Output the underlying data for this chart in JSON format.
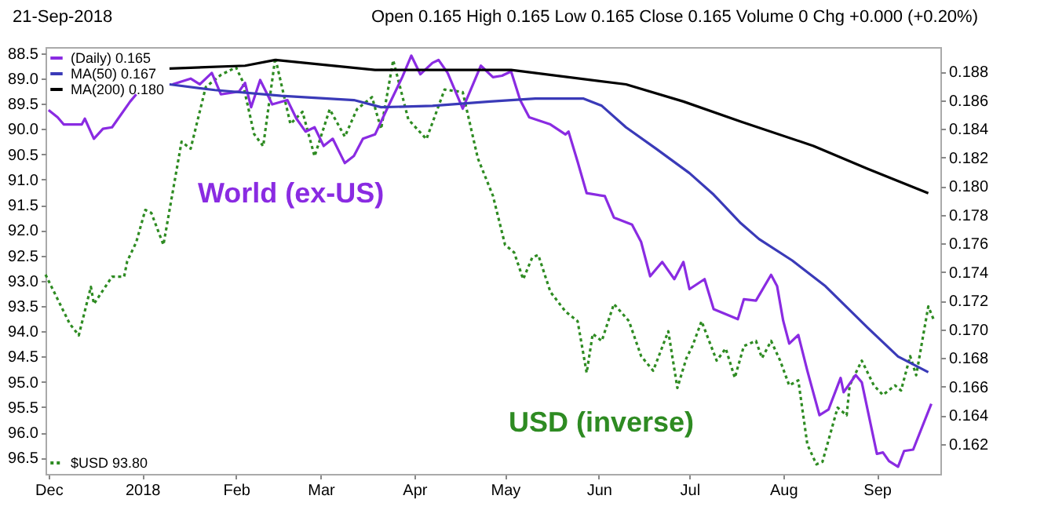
{
  "chart_data": {
    "type": "line",
    "subtitle": "21-Sep-2018",
    "annotations": [
      "Open 0.165 High 0.165 Low 0.165 Close 0.165 Volume 0 Chg +0.000 (+0.20%)",
      "World (ex-US)",
      "USD (inverse)"
    ],
    "xlim": [
      "2017-11-30",
      "2018-09-22"
    ],
    "xticks": [
      {
        "value": "2017-12-01",
        "label": "Dec"
      },
      {
        "value": "2018-01-01",
        "label": "2018"
      },
      {
        "value": "2018-02-01",
        "label": "Feb"
      },
      {
        "value": "2018-03-01",
        "label": "Mar"
      },
      {
        "value": "2018-04-01",
        "label": "Apr"
      },
      {
        "value": "2018-05-01",
        "label": "May"
      },
      {
        "value": "2018-06-01",
        "label": "Jun"
      },
      {
        "value": "2018-07-01",
        "label": "Jul"
      },
      {
        "value": "2018-08-01",
        "label": "Aug"
      },
      {
        "value": "2018-09-01",
        "label": "Sep"
      }
    ],
    "ylim": [
      96.82,
      88.38
    ],
    "yticks": [
      {
        "value": 88.5,
        "label": "88.5"
      },
      {
        "value": 89,
        "label": "89.0"
      },
      {
        "value": 89.5,
        "label": "89.5"
      },
      {
        "value": 90,
        "label": "90.0"
      },
      {
        "value": 90.5,
        "label": "90.5"
      },
      {
        "value": 91,
        "label": "91.0"
      },
      {
        "value": 91.5,
        "label": "91.5"
      },
      {
        "value": 92,
        "label": "92.0"
      },
      {
        "value": 92.5,
        "label": "92.5"
      },
      {
        "value": 93,
        "label": "93.0"
      },
      {
        "value": 93.5,
        "label": "93.5"
      },
      {
        "value": 94,
        "label": "94.0"
      },
      {
        "value": 94.5,
        "label": "94.5"
      },
      {
        "value": 95,
        "label": "95.0"
      },
      {
        "value": 95.5,
        "label": "95.5"
      },
      {
        "value": 96,
        "label": "96.0"
      },
      {
        "value": 96.5,
        "label": "96.5"
      }
    ],
    "y2lim": [
      0.1599,
      0.1897
    ],
    "y2ticks": [
      {
        "value": 0.162,
        "label": "0.162"
      },
      {
        "value": 0.164,
        "label": "0.164"
      },
      {
        "value": 0.166,
        "label": "0.166"
      },
      {
        "value": 0.168,
        "label": "0.168"
      },
      {
        "value": 0.17,
        "label": "0.170"
      },
      {
        "value": 0.172,
        "label": "0.172"
      },
      {
        "value": 0.174,
        "label": "0.174"
      },
      {
        "value": 0.176,
        "label": "0.176"
      },
      {
        "value": 0.178,
        "label": "0.178"
      },
      {
        "value": 0.18,
        "label": "0.180"
      },
      {
        "value": 0.182,
        "label": "0.182"
      },
      {
        "value": 0.184,
        "label": "0.184"
      },
      {
        "value": 0.186,
        "label": "0.186"
      },
      {
        "value": 0.188,
        "label": "0.188"
      }
    ],
    "legend": "top left",
    "marker": "none",
    "series": [
      {
        "name": "(Daily) 0.165",
        "color": "#8a2be2",
        "axis": "y2",
        "line_style": "solid",
        "x": [
          "2017-12-01",
          "2017-12-04",
          "2017-12-06",
          "2017-12-12",
          "2017-12-13",
          "2017-12-16",
          "2017-12-19",
          "2017-12-22",
          "2017-12-28",
          "2017-12-30",
          "2018-01-05",
          "2018-01-11",
          "2018-01-17",
          "2018-01-20",
          "2018-01-24",
          "2018-01-27",
          "2018-02-02",
          "2018-02-04",
          "2018-02-06",
          "2018-02-09",
          "2018-02-13",
          "2018-02-18",
          "2018-02-21",
          "2018-02-24",
          "2018-02-27",
          "2018-03-02",
          "2018-03-05",
          "2018-03-09",
          "2018-03-12",
          "2018-03-15",
          "2018-03-19",
          "2018-03-23",
          "2018-03-28",
          "2018-03-31",
          "2018-04-03",
          "2018-04-07",
          "2018-04-09",
          "2018-04-12",
          "2018-04-17",
          "2018-04-20",
          "2018-04-23",
          "2018-04-27",
          "2018-04-30",
          "2018-05-03",
          "2018-05-06",
          "2018-05-09",
          "2018-05-16",
          "2018-05-21",
          "2018-05-22",
          "2018-05-25",
          "2018-05-28",
          "2018-06-03",
          "2018-06-06",
          "2018-06-12",
          "2018-06-15",
          "2018-06-18",
          "2018-06-22",
          "2018-06-26",
          "2018-06-29",
          "2018-07-01",
          "2018-07-06",
          "2018-07-09",
          "2018-07-17",
          "2018-07-19",
          "2018-07-23",
          "2018-07-28",
          "2018-07-30",
          "2018-08-01",
          "2018-08-03",
          "2018-08-06",
          "2018-08-09",
          "2018-08-13",
          "2018-08-16",
          "2018-08-20",
          "2018-08-21",
          "2018-08-25",
          "2018-08-27",
          "2018-09-01",
          "2018-09-03",
          "2018-09-05",
          "2018-09-08",
          "2018-09-10",
          "2018-09-13",
          "2018-09-19"
        ],
        "values": [
          0.1853,
          0.1848,
          0.1843,
          0.1843,
          0.1847,
          0.1833,
          0.184,
          0.1841,
          0.1859,
          0.1864,
          null,
          0.1871,
          0.1875,
          0.1871,
          0.1879,
          0.1864,
          0.1866,
          0.1872,
          0.1855,
          0.1874,
          0.1857,
          0.186,
          0.1847,
          0.1838,
          0.1841,
          0.1828,
          0.1833,
          0.1816,
          0.1821,
          0.1833,
          0.1836,
          0.1854,
          0.1876,
          0.1891,
          0.1878,
          0.1886,
          0.1888,
          0.1879,
          0.1854,
          0.1869,
          0.1884,
          0.1876,
          0.1877,
          0.188,
          0.186,
          0.1848,
          0.1843,
          0.1836,
          0.1838,
          0.1817,
          0.1795,
          0.1793,
          0.1778,
          0.1773,
          0.1761,
          0.1737,
          0.1747,
          0.1735,
          0.1747,
          0.1728,
          0.1735,
          0.1714,
          0.1707,
          0.1721,
          0.172,
          0.1738,
          0.173,
          0.1706,
          0.169,
          0.1696,
          0.1671,
          0.164,
          0.1644,
          0.1666,
          0.1656,
          0.1668,
          0.1663,
          0.1613,
          0.1614,
          0.1608,
          0.1604,
          0.1615,
          0.1616,
          0.1648
        ]
      },
      {
        "name": "MA(50) 0.167",
        "color": "#3a3ab8",
        "axis": "y2",
        "line_style": "solid",
        "x": [
          "2018-01-10",
          "2018-01-25",
          "2018-02-16",
          "2018-03-12",
          "2018-03-21",
          "2018-04-07",
          "2018-04-26",
          "2018-05-11",
          "2018-05-27",
          "2018-06-02",
          "2018-06-10",
          "2018-06-20",
          "2018-07-01",
          "2018-07-09",
          "2018-07-18",
          "2018-07-24",
          "2018-08-04",
          "2018-08-15",
          "2018-08-29",
          "2018-09-08",
          "2018-09-18"
        ],
        "values": [
          0.1871,
          0.1867,
          0.1863,
          0.186,
          0.1855,
          0.1856,
          0.1859,
          0.1861,
          0.1861,
          0.1856,
          0.1841,
          0.1826,
          0.1809,
          0.1794,
          0.1774,
          0.1763,
          0.1748,
          0.173,
          0.1701,
          0.1681,
          0.167
        ]
      },
      {
        "name": "MA(200) 0.180",
        "color": "#000000",
        "axis": "y2",
        "line_style": "solid",
        "x": [
          "2018-01-10",
          "2018-02-04",
          "2018-02-14",
          "2018-03-19",
          "2018-05-03",
          "2018-06-10",
          "2018-06-29",
          "2018-07-18",
          "2018-08-11",
          "2018-08-29",
          "2018-09-18"
        ],
        "values": [
          0.1882,
          0.1884,
          0.1888,
          0.1881,
          0.1881,
          0.1871,
          0.1859,
          0.1845,
          0.1828,
          0.1812,
          0.1795
        ]
      },
      {
        "name": "$USD 93.80",
        "color": "#2e8b22",
        "axis": "y",
        "line_style": "dotted",
        "x": [
          "2017-11-30",
          "2017-12-08",
          "2017-12-11",
          "2017-12-15",
          "2017-12-16",
          "2017-12-22",
          "2017-12-26",
          "2017-12-27",
          "2017-12-30",
          "2018-01-02",
          "2018-01-04",
          "2018-01-08",
          "2018-01-14",
          "2018-01-17",
          "2018-01-22",
          "2018-01-27",
          "2018-02-01",
          "2018-02-03",
          "2018-02-07",
          "2018-02-10",
          "2018-02-14",
          "2018-02-19",
          "2018-02-23",
          "2018-02-27",
          "2018-03-04",
          "2018-03-09",
          "2018-03-13",
          "2018-03-18",
          "2018-03-21",
          "2018-03-25",
          "2018-03-30",
          "2018-04-05",
          "2018-04-11",
          "2018-04-17",
          "2018-04-22",
          "2018-04-27",
          "2018-05-01",
          "2018-05-04",
          "2018-05-07",
          "2018-05-10",
          "2018-05-12",
          "2018-05-16",
          "2018-05-21",
          "2018-05-25",
          "2018-05-28",
          "2018-05-30",
          "2018-06-02",
          "2018-06-06",
          "2018-06-11",
          "2018-06-15",
          "2018-06-19",
          "2018-06-24",
          "2018-06-27",
          "2018-06-30",
          "2018-07-02",
          "2018-07-05",
          "2018-07-10",
          "2018-07-13",
          "2018-07-16",
          "2018-07-19",
          "2018-07-23",
          "2018-07-25",
          "2018-07-28",
          "2018-07-31",
          "2018-08-03",
          "2018-08-06",
          "2018-08-09",
          "2018-08-12",
          "2018-08-14",
          "2018-08-19",
          "2018-08-22",
          "2018-08-23",
          "2018-08-27",
          "2018-08-31",
          "2018-09-03",
          "2018-09-07",
          "2018-09-09",
          "2018-09-12",
          "2018-09-14",
          "2018-09-18",
          "2018-09-20"
        ],
        "values": [
          92.88,
          93.85,
          94.08,
          93.12,
          93.46,
          92.92,
          92.92,
          92.62,
          92.24,
          91.6,
          91.66,
          92.29,
          90.25,
          90.39,
          89.17,
          88.93,
          88.78,
          89.03,
          90.1,
          90.34,
          88.59,
          89.9,
          89.66,
          90.54,
          89.61,
          90.15,
          89.61,
          89.37,
          90.0,
          88.64,
          89.81,
          90.2,
          89.22,
          89.27,
          90.58,
          91.32,
          92.29,
          92.44,
          92.97,
          92.54,
          92.49,
          93.22,
          93.61,
          93.8,
          94.82,
          94.05,
          94.19,
          93.46,
          93.8,
          94.49,
          94.78,
          94.0,
          95.12,
          94.53,
          94.29,
          93.8,
          94.58,
          94.34,
          94.92,
          94.29,
          94.19,
          94.53,
          94.19,
          94.58,
          95.07,
          94.97,
          96.24,
          96.63,
          96.58,
          95.51,
          95.66,
          95.07,
          94.58,
          95.07,
          95.26,
          95.07,
          95.17,
          94.49,
          94.87,
          93.51,
          93.8
        ]
      }
    ]
  }
}
